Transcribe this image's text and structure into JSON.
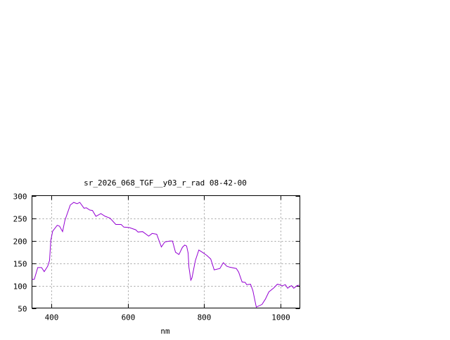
{
  "chart_data": {
    "type": "line",
    "title": "sr_2026_068_TGF__y03_r_rad 08-42-00",
    "xlabel": "nm",
    "ylabel": "",
    "xlim": [
      350,
      1050
    ],
    "ylim": [
      50,
      300
    ],
    "xticks": [
      400,
      600,
      800,
      1000
    ],
    "yticks": [
      50,
      100,
      150,
      200,
      250,
      300
    ],
    "grid": true,
    "line_color": "#9400d3",
    "grid_color": "#a0a0a0",
    "series": [
      {
        "x": [
          350,
          356,
          365,
          375,
          382,
          391,
          396,
          399,
          404,
          416,
          422,
          430,
          436,
          450,
          459,
          468,
          475,
          486,
          492,
          501,
          508,
          517,
          530,
          541,
          554,
          569,
          583,
          590,
          604,
          621,
          627,
          639,
          655,
          664,
          676,
          688,
          697,
          710,
          717,
          725,
          734,
          743,
          749,
          754,
          758,
          760,
          765,
          768,
          777,
          786,
          795,
          807,
          817,
          826,
          841,
          850,
          859,
          866,
          884,
          890,
          899,
          907,
          911,
          921,
          927,
          936,
          951,
          960,
          969,
          982,
          991,
          997,
          1003,
          1012,
          1018,
          1028,
          1034,
          1043,
          1048
        ],
        "y": [
          114,
          114,
          140,
          140,
          131,
          143,
          156,
          200,
          221,
          234,
          232,
          220,
          245,
          279,
          285,
          282,
          285,
          272,
          273,
          268,
          267,
          254,
          260,
          254,
          250,
          236,
          236,
          230,
          229,
          224,
          219,
          220,
          210,
          216,
          214,
          186,
          197,
          199,
          199,
          174,
          169,
          185,
          190,
          188,
          172,
          141,
          112,
          117,
          156,
          179,
          174,
          167,
          159,
          135,
          138,
          151,
          143,
          141,
          138,
          130,
          108,
          107,
          102,
          103,
          89,
          52,
          58,
          70,
          86,
          95,
          103,
          102,
          99,
          102,
          94,
          100,
          94,
          100,
          101
        ]
      }
    ]
  }
}
